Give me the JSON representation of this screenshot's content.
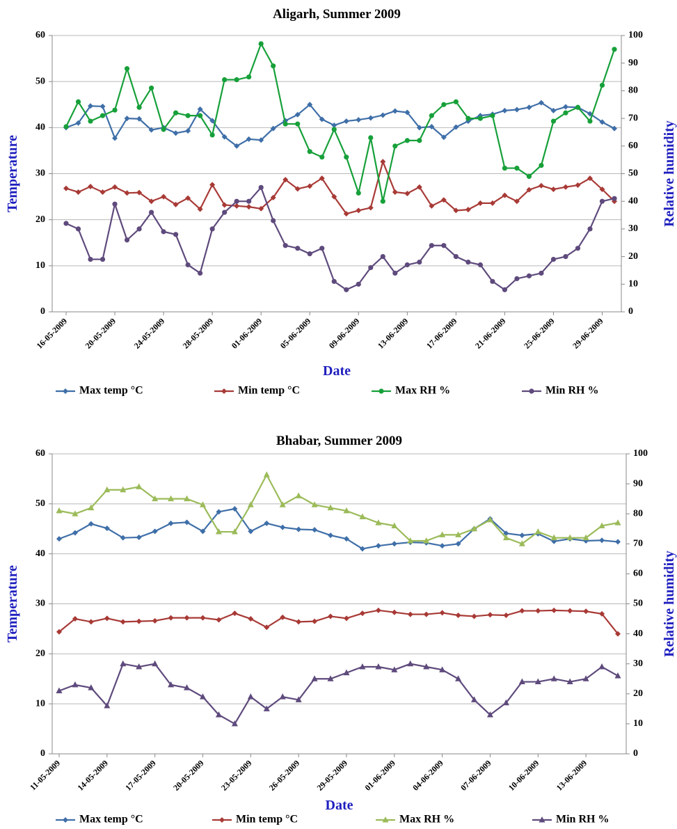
{
  "chart_data": [
    {
      "type": "line",
      "title": "Aligarh, Summer 2009",
      "x_label": "Date",
      "y_label": "Temperature",
      "y2_label": "Relative humidity",
      "categories": [
        "16-05-2009",
        null,
        null,
        null,
        "20-05-2009",
        null,
        null,
        null,
        "24-05-2009",
        null,
        null,
        null,
        "28-05-2009",
        null,
        null,
        null,
        "01-06-2009",
        null,
        null,
        null,
        "05-06-2009",
        null,
        null,
        null,
        "09-06-2009",
        null,
        null,
        null,
        "13-06-2009",
        null,
        null,
        null,
        "17-06-2009",
        null,
        null,
        null,
        "21-06-2009",
        null,
        null,
        null,
        "25-06-2009",
        null,
        null,
        null,
        "29-06-2009",
        null
      ],
      "ylim": [
        0,
        60
      ],
      "yticks": [
        0,
        10,
        20,
        30,
        40,
        50,
        60
      ],
      "y2lim": [
        0,
        100
      ],
      "y2ticks": [
        0,
        10,
        20,
        30,
        40,
        50,
        60,
        70,
        80,
        90,
        100
      ],
      "grid": true,
      "legend": "bottom",
      "series": [
        {
          "name": "Max temp °C",
          "color": "#3f6fa8",
          "marker": "diamond",
          "values": [
            40,
            41,
            44.7,
            44.6,
            37.7,
            42,
            41.9,
            39.5,
            40,
            38.8,
            39.3,
            44,
            41.5,
            38,
            36,
            37.5,
            37.3,
            39.8,
            41.5,
            42.8,
            45,
            41.8,
            40.5,
            41.4,
            41.7,
            42.1,
            42.7,
            43.6,
            43.3,
            40,
            40.2,
            37.9,
            40.1,
            41.4,
            42.6,
            42.9,
            43.7,
            43.9,
            44.4,
            45.4,
            43.7,
            44.5,
            44.4,
            43,
            41.2,
            39.8
          ]
        },
        {
          "name": "Min temp °C",
          "color": "#a83a36",
          "marker": "diamond",
          "values": [
            26.8,
            26,
            27.2,
            26,
            27.1,
            25.8,
            25.9,
            24,
            25,
            23.3,
            24.7,
            22.3,
            27.6,
            23.2,
            23,
            22.8,
            22.4,
            24.8,
            28.7,
            26.7,
            27.3,
            29,
            25,
            21.3,
            22,
            22.6,
            32.6,
            26,
            25.7,
            27.1,
            23,
            24.3,
            22,
            22.2,
            23.6,
            23.6,
            25.3,
            24,
            26.5,
            27.4,
            26.6,
            27.1,
            27.5,
            29,
            26.6,
            24
          ]
        },
        {
          "name": "Max RH %",
          "color": "#17a03a",
          "marker": "circle",
          "axis": "y2",
          "values": [
            67,
            76,
            69,
            71,
            73,
            88,
            74,
            81,
            66,
            72,
            71,
            71,
            64,
            84,
            84,
            85,
            97,
            89,
            68,
            68,
            58,
            56,
            66,
            56,
            43,
            63,
            40,
            60,
            62,
            62,
            71,
            75,
            76,
            70,
            70,
            71,
            52,
            52,
            49,
            53,
            69,
            72,
            74,
            69,
            82,
            95
          ]
        },
        {
          "name": "Min RH %",
          "color": "#5e4a7c",
          "marker": "circle",
          "axis": "y2",
          "values": [
            32,
            30,
            19,
            19,
            39,
            26,
            30,
            36,
            29,
            28,
            17,
            14,
            30,
            36,
            40,
            40,
            45,
            33,
            24,
            23,
            21,
            23,
            11,
            8,
            10,
            16,
            20,
            14,
            17,
            18,
            24,
            24,
            20,
            18,
            17,
            11,
            8,
            12,
            13,
            14,
            19,
            20,
            23,
            30,
            40,
            41
          ]
        }
      ]
    },
    {
      "type": "line",
      "title": "Bhabar, Summer 2009",
      "x_label": "Date",
      "y_label": "Temperature",
      "y2_label": "Relative humidity",
      "categories": [
        "11-05-2009",
        null,
        null,
        "14-05-2009",
        null,
        null,
        "17-05-2009",
        null,
        null,
        "20-05-2009",
        null,
        null,
        "23-05-2009",
        null,
        null,
        "26-05-2009",
        null,
        null,
        "29-05-2009",
        null,
        null,
        "01-06-2009",
        null,
        null,
        "04-06-2009",
        null,
        null,
        "07-06-2009",
        null,
        null,
        "10-06-2009",
        null,
        null,
        "13-06-2009",
        null,
        null
      ],
      "ylim": [
        0,
        60
      ],
      "yticks": [
        0,
        10,
        20,
        30,
        40,
        50,
        60
      ],
      "y2lim": [
        0,
        100
      ],
      "y2ticks": [
        0,
        10,
        20,
        30,
        40,
        50,
        60,
        70,
        80,
        90,
        100
      ],
      "grid": true,
      "legend": "bottom",
      "series": [
        {
          "name": "Max temp °C",
          "color": "#3f6fa8",
          "marker": "diamond",
          "values": [
            43,
            44.2,
            46,
            45.1,
            43.2,
            43.3,
            44.5,
            46.1,
            46.3,
            44.5,
            48.4,
            49,
            44.5,
            46.1,
            45.3,
            44.9,
            44.8,
            43.7,
            43,
            41,
            41.6,
            42,
            42.3,
            42.2,
            41.6,
            42,
            45,
            47,
            44.1,
            43.7,
            44,
            42.5,
            43,
            42.6,
            42.7,
            42.4
          ]
        },
        {
          "name": "Min temp °C",
          "color": "#a83a36",
          "marker": "diamond",
          "values": [
            24.4,
            27,
            26.4,
            27.1,
            26.4,
            26.5,
            26.6,
            27.2,
            27.2,
            27.2,
            26.8,
            28.1,
            27,
            25.3,
            27.3,
            26.4,
            26.5,
            27.5,
            27.1,
            28.1,
            28.7,
            28.3,
            27.9,
            27.9,
            28.2,
            27.7,
            27.5,
            27.8,
            27.7,
            28.6,
            28.6,
            28.7,
            28.6,
            28.5,
            28,
            24
          ]
        },
        {
          "name": "Max RH %",
          "color": "#9bbb59",
          "marker": "triangle",
          "axis": "y2",
          "values": [
            81,
            80,
            82,
            88,
            88,
            89,
            85,
            85,
            85,
            83,
            74,
            74,
            83,
            93,
            83,
            86,
            83,
            82,
            81,
            79,
            77,
            76,
            71,
            71,
            73,
            73,
            75,
            78,
            72,
            70,
            74,
            72,
            72,
            72,
            76,
            77
          ]
        },
        {
          "name": "Min RH %",
          "color": "#5e4a7c",
          "marker": "triangle",
          "axis": "y2",
          "values": [
            21,
            23,
            22,
            16,
            30,
            29,
            30,
            23,
            22,
            19,
            13,
            10,
            19,
            15,
            19,
            18,
            25,
            25,
            27,
            29,
            29,
            28,
            30,
            29,
            28,
            25,
            18,
            13,
            17,
            24,
            24,
            25,
            24,
            25,
            29,
            26
          ]
        }
      ]
    }
  ]
}
